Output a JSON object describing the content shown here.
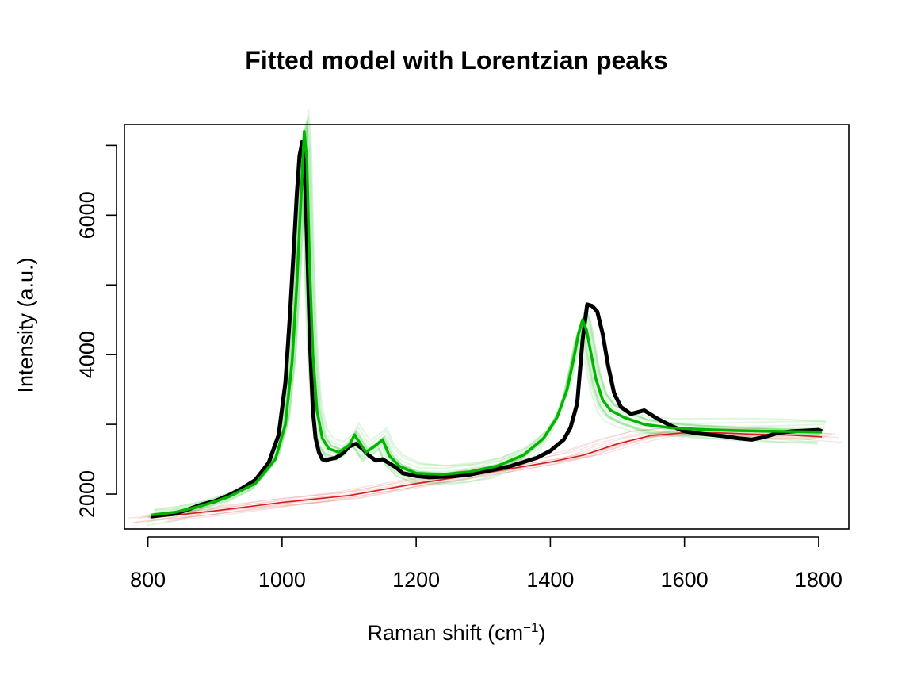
{
  "chart_data": {
    "type": "line",
    "title": "Fitted model with Lorentzian peaks",
    "xlabel_text": "Raman shift (cm",
    "xlabel_sup": "−1",
    "xlabel_close": ")",
    "ylabel": "Intensity (a.u.)",
    "xlim": [
      765,
      1845
    ],
    "ylim": [
      1500,
      7300
    ],
    "x_ticks": [
      800,
      1000,
      1200,
      1400,
      1600,
      1800
    ],
    "y_ticks": [
      2000,
      4000,
      6000
    ],
    "grid": false,
    "legend": "none",
    "colors": {
      "observed": "#000000",
      "fitted": "#00b400",
      "baseline": "#d42020"
    },
    "series": [
      {
        "role": "observed",
        "x": [
          805,
          820,
          840,
          860,
          880,
          900,
          920,
          940,
          960,
          980,
          995,
          1005,
          1012,
          1018,
          1022,
          1026,
          1030,
          1034,
          1038,
          1042,
          1046,
          1050,
          1055,
          1060,
          1065,
          1070,
          1080,
          1090,
          1100,
          1110,
          1120,
          1130,
          1140,
          1150,
          1160,
          1170,
          1180,
          1200,
          1220,
          1240,
          1260,
          1280,
          1300,
          1320,
          1340,
          1360,
          1380,
          1400,
          1420,
          1430,
          1440,
          1448,
          1455,
          1462,
          1470,
          1478,
          1486,
          1495,
          1505,
          1520,
          1540,
          1560,
          1580,
          1600,
          1620,
          1640,
          1660,
          1680,
          1700,
          1720,
          1740,
          1760,
          1780,
          1800,
          1805
        ],
        "y": [
          1680,
          1700,
          1720,
          1780,
          1850,
          1900,
          1980,
          2080,
          2200,
          2450,
          2850,
          3600,
          4600,
          5600,
          6300,
          6850,
          7050,
          6600,
          5400,
          4100,
          3200,
          2800,
          2600,
          2500,
          2480,
          2500,
          2520,
          2580,
          2680,
          2720,
          2650,
          2550,
          2480,
          2500,
          2440,
          2380,
          2300,
          2260,
          2240,
          2250,
          2260,
          2280,
          2320,
          2360,
          2400,
          2460,
          2520,
          2620,
          2780,
          2950,
          3300,
          4200,
          4720,
          4700,
          4620,
          4300,
          3850,
          3450,
          3250,
          3150,
          3200,
          3080,
          2980,
          2900,
          2870,
          2850,
          2830,
          2800,
          2780,
          2820,
          2880,
          2900,
          2910,
          2920,
          2900
        ]
      },
      {
        "role": "fitted",
        "x": [
          805,
          840,
          880,
          920,
          960,
          990,
          1005,
          1015,
          1022,
          1028,
          1033,
          1037,
          1041,
          1046,
          1052,
          1060,
          1070,
          1085,
          1100,
          1108,
          1115,
          1125,
          1140,
          1150,
          1160,
          1175,
          1200,
          1240,
          1280,
          1320,
          1360,
          1390,
          1410,
          1425,
          1435,
          1442,
          1448,
          1454,
          1460,
          1468,
          1478,
          1490,
          1510,
          1540,
          1580,
          1620,
          1680,
          1740,
          1805
        ],
        "y": [
          1700,
          1740,
          1830,
          1960,
          2150,
          2500,
          3000,
          3900,
          5000,
          6200,
          7200,
          6800,
          5300,
          4000,
          3200,
          2800,
          2650,
          2600,
          2700,
          2850,
          2750,
          2600,
          2700,
          2780,
          2550,
          2400,
          2300,
          2280,
          2320,
          2400,
          2560,
          2800,
          3100,
          3500,
          3950,
          4300,
          4500,
          4350,
          4050,
          3650,
          3350,
          3200,
          3100,
          3000,
          2950,
          2930,
          2910,
          2900,
          2890
        ]
      },
      {
        "role": "baseline",
        "x": [
          805,
          900,
          1000,
          1100,
          1200,
          1300,
          1400,
          1450,
          1500,
          1550,
          1600,
          1650,
          1700,
          1750,
          1805
        ],
        "y": [
          1660,
          1760,
          1880,
          1980,
          2150,
          2300,
          2460,
          2560,
          2720,
          2840,
          2880,
          2880,
          2860,
          2850,
          2820
        ]
      }
    ]
  }
}
